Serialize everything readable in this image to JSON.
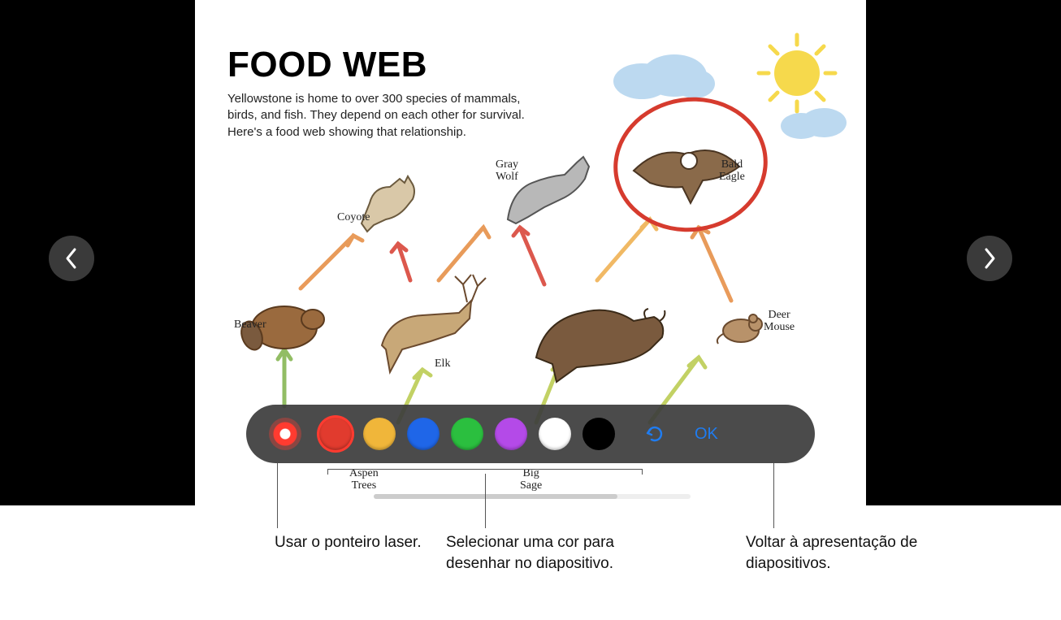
{
  "viewer": {
    "background_color": "#000000",
    "nav_button_bg": "#3a3a3a",
    "nav_icon_color": "#ffffff"
  },
  "slide": {
    "title": "FOOD WEB",
    "title_fontsize": 44,
    "title_color": "#000000",
    "description": "Yellowstone is home to over 300 species of mammals, birds, and fish. They depend on each other for survival. Here's a food web showing that relationship.",
    "description_fontsize": 15,
    "background_color": "#ffffff",
    "annotation": {
      "circle_color": "#d63b2e",
      "circle_stroke": 5
    },
    "animals": {
      "coyote": "Coyote",
      "gray_wolf": "Gray\nWolf",
      "bald_eagle": "Bald\nEagle",
      "beaver": "Beaver",
      "elk": "Elk",
      "deer_mouse": "Deer\nMouse",
      "aspen_trees": "Aspen\nTrees",
      "big_sage": "Big\nSage"
    },
    "decor": {
      "sun_color": "#f6d94c",
      "cloud_color": "#bcd9f0"
    },
    "arrows": {
      "green": "#7fb24a",
      "yellowgreen": "#b8c94a",
      "orange": "#e58a3e",
      "red": "#d63b2e"
    }
  },
  "toolbar": {
    "background": "rgba(60,60,60,0.92)",
    "laser_color": "#ff3b30",
    "colors": [
      {
        "name": "red",
        "hex": "#e13b2e",
        "selected": true
      },
      {
        "name": "yellow",
        "hex": "#f0b63a",
        "selected": false
      },
      {
        "name": "blue",
        "hex": "#1f66e8",
        "selected": false
      },
      {
        "name": "green",
        "hex": "#2bbf3f",
        "selected": false
      },
      {
        "name": "purple",
        "hex": "#b44ae8",
        "selected": false
      },
      {
        "name": "white",
        "hex": "#ffffff",
        "selected": false
      },
      {
        "name": "black",
        "hex": "#000000",
        "selected": false
      }
    ],
    "undo_color": "#1f7cf0",
    "ok_label": "OK",
    "ok_color": "#1f7cf0"
  },
  "callouts": {
    "laser": "Usar o ponteiro laser.",
    "color": "Selecionar uma cor para desenhar no diapositivo.",
    "ok": "Voltar à apresentação de diapositivos."
  }
}
